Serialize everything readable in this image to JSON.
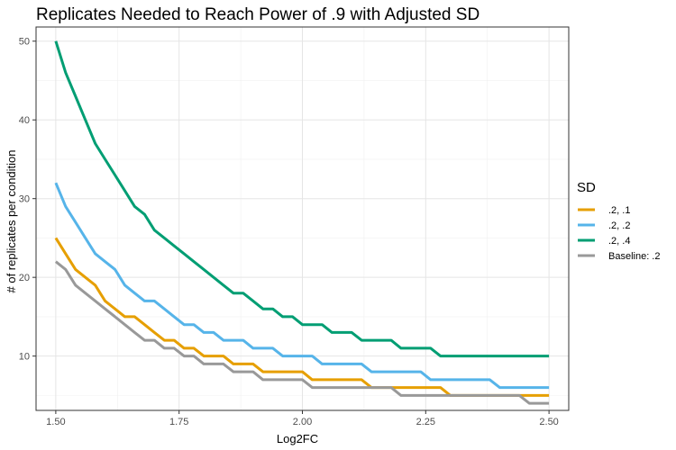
{
  "chart_data": {
    "type": "line",
    "title": "Replicates Needed to Reach Power of .9 with Adjusted SD",
    "xlabel": "Log2FC",
    "ylabel": "# of replicates per condition",
    "xlim": [
      1.46,
      2.54
    ],
    "ylim": [
      3.1,
      51.8
    ],
    "x_ticks": [
      1.5,
      1.75,
      2.0,
      2.25,
      2.5
    ],
    "x_tick_labels": [
      "1.50",
      "1.75",
      "2.00",
      "2.25",
      "2.50"
    ],
    "y_ticks": [
      10,
      20,
      30,
      40,
      50
    ],
    "y_tick_labels": [
      "10",
      "20",
      "30",
      "40",
      "50"
    ],
    "grid": true,
    "legend_title": "SD",
    "legend_position": "right",
    "x": [
      1.5,
      1.52,
      1.54,
      1.56,
      1.58,
      1.6,
      1.62,
      1.64,
      1.66,
      1.68,
      1.7,
      1.72,
      1.74,
      1.76,
      1.78,
      1.8,
      1.82,
      1.84,
      1.86,
      1.88,
      1.9,
      1.92,
      1.94,
      1.96,
      1.98,
      2.0,
      2.02,
      2.04,
      2.06,
      2.08,
      2.1,
      2.12,
      2.14,
      2.16,
      2.18,
      2.2,
      2.22,
      2.24,
      2.26,
      2.28,
      2.3,
      2.32,
      2.34,
      2.36,
      2.38,
      2.4,
      2.42,
      2.44,
      2.46,
      2.48,
      2.5
    ],
    "series": [
      {
        "name": ".2, .1",
        "color": "#E69F00",
        "values": [
          25,
          23,
          21,
          20,
          19,
          17,
          16,
          15,
          15,
          14,
          13,
          12,
          12,
          11,
          11,
          10,
          10,
          10,
          9,
          9,
          9,
          8,
          8,
          8,
          8,
          8,
          7,
          7,
          7,
          7,
          7,
          7,
          6,
          6,
          6,
          6,
          6,
          6,
          6,
          6,
          5,
          5,
          5,
          5,
          5,
          5,
          5,
          5,
          5,
          5,
          5
        ]
      },
      {
        "name": ".2, .2",
        "color": "#56B4E9",
        "values": [
          32,
          29,
          27,
          25,
          23,
          22,
          21,
          19,
          18,
          17,
          17,
          16,
          15,
          14,
          14,
          13,
          13,
          12,
          12,
          12,
          11,
          11,
          11,
          10,
          10,
          10,
          10,
          9,
          9,
          9,
          9,
          9,
          8,
          8,
          8,
          8,
          8,
          8,
          7,
          7,
          7,
          7,
          7,
          7,
          7,
          6,
          6,
          6,
          6,
          6,
          6
        ]
      },
      {
        "name": ".2, .4",
        "color": "#009E73",
        "values": [
          50,
          46,
          43,
          40,
          37,
          35,
          33,
          31,
          29,
          28,
          26,
          25,
          24,
          23,
          22,
          21,
          20,
          19,
          18,
          18,
          17,
          16,
          16,
          15,
          15,
          14,
          14,
          14,
          13,
          13,
          13,
          12,
          12,
          12,
          12,
          11,
          11,
          11,
          11,
          10,
          10,
          10,
          10,
          10,
          10,
          10,
          10,
          10,
          10,
          10,
          10
        ]
      },
      {
        "name": "Baseline: .2",
        "color": "#999999",
        "values": [
          22,
          21,
          19,
          18,
          17,
          16,
          15,
          14,
          13,
          12,
          12,
          11,
          11,
          10,
          10,
          9,
          9,
          9,
          8,
          8,
          8,
          7,
          7,
          7,
          7,
          7,
          6,
          6,
          6,
          6,
          6,
          6,
          6,
          6,
          6,
          5,
          5,
          5,
          5,
          5,
          5,
          5,
          5,
          5,
          5,
          5,
          5,
          5,
          4,
          4,
          4
        ]
      }
    ]
  }
}
